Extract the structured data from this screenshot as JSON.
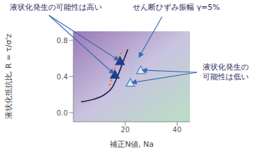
{
  "chart_data": {
    "type": "line",
    "x_label": "補正N値, Na",
    "y_label": "液状化抵抗比, R = τ/σ'z",
    "xlim": [
      0,
      45
    ],
    "xticks": [
      20,
      40
    ],
    "ylim": [
      -0.1,
      0.9
    ],
    "yticks": [
      {
        "value": 0,
        "label": "0.0"
      },
      {
        "value": 0.4,
        "label": "0.4"
      },
      {
        "value": 0.8,
        "label": "0.8"
      }
    ],
    "grid": false,
    "annotations": [
      {
        "text": "液状化発生の可能性は高い"
      },
      {
        "text": "せん断ひずみ振幅 γ=5%"
      },
      {
        "text": "液状化発生の可能性は低い"
      }
    ],
    "series": [
      {
        "type": "line",
        "color": "#26264a",
        "line_style": "solid",
        "x": [
          3,
          8,
          12,
          15,
          17,
          19,
          21
        ],
        "values": [
          0.12,
          0.15,
          0.2,
          0.28,
          0.4,
          0.55,
          0.7
        ]
      },
      {
        "type": "line",
        "color": "#e8783a",
        "line_style": "dashed",
        "x": [
          14,
          15,
          16,
          17.5,
          19
        ],
        "values": [
          0.3,
          0.4,
          0.5,
          0.6,
          0.7
        ]
      },
      {
        "type": "line",
        "color": "#8fc8e8",
        "line_style": "dashed",
        "x": [
          20,
          22,
          23,
          24.5,
          26
        ],
        "values": [
          0.3,
          0.4,
          0.5,
          0.6,
          0.7
        ]
      },
      {
        "type": "scatter",
        "marker": "triangle",
        "color": "#1f3c88",
        "x": [
          16,
          18
        ],
        "values": [
          0.42,
          0.57
        ]
      },
      {
        "type": "scatter",
        "marker": "triangle_open",
        "color": "#5b8fc9",
        "x": [
          22,
          26
        ],
        "values": [
          0.33,
          0.47
        ]
      }
    ]
  }
}
